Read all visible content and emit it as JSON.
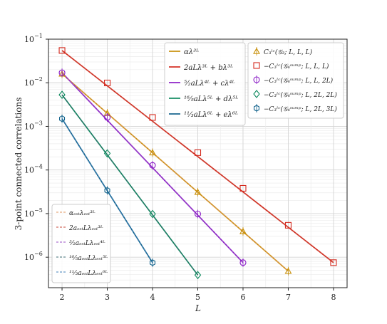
{
  "chart_data": {
    "type": "line",
    "xlabel": "L",
    "ylabel": "3-point connected correlations",
    "xlim": [
      1.7,
      8.3
    ],
    "ylim": [
      2e-07,
      0.1
    ],
    "yscale": "log",
    "grid": true,
    "xticks": [
      "2",
      "3",
      "4",
      "5",
      "6",
      "7",
      "8"
    ],
    "yticks": [
      {
        "v": 0.1,
        "m": "10",
        "e": "−1"
      },
      {
        "v": 0.01,
        "m": "10",
        "e": "−2"
      },
      {
        "v": 0.001,
        "m": "10",
        "e": "−3"
      },
      {
        "v": 0.0001,
        "m": "10",
        "e": "−4"
      },
      {
        "v": 1e-05,
        "m": "10",
        "e": "−5"
      },
      {
        "v": 1e-06,
        "m": "10",
        "e": "−6"
      }
    ],
    "fits": [
      {
        "name": "αλ³ᴸ",
        "color": "#c8900a",
        "x": [
          2,
          7
        ],
        "y": [
          0.016,
          4.8e-07
        ]
      },
      {
        "name": "2aLλ³ᴸ + bλ³ᴸ",
        "color": "#d42a1e",
        "x": [
          2,
          8
        ],
        "y": [
          0.055,
          7.5e-07
        ]
      },
      {
        "name": "⁵⁄₂aLλ⁴ᴸ + cλ⁴ᴸ",
        "color": "#8a1cc6",
        "x": [
          2,
          6
        ],
        "y": [
          0.017,
          7.5e-07
        ]
      },
      {
        "name": "¹⁶⁄₅aLλ⁵ᴸ + dλ⁵ᴸ",
        "color": "#0f8a5f",
        "x": [
          2,
          5
        ],
        "y": [
          0.0053,
          3.9e-07
        ]
      },
      {
        "name": "¹¹⁄₃aLλ⁶ᴸ + eλ⁶ᴸ",
        "color": "#12638c",
        "x": [
          2,
          4
        ],
        "y": [
          0.0015,
          7.5e-07
        ]
      }
    ],
    "series": [
      {
        "name": "C₃ˡᶜ(𝒢₃; L, L, L)",
        "marker": "triangle",
        "color": "#c8900a",
        "x": [
          2,
          3,
          4,
          5,
          6,
          7
        ],
        "y": [
          0.016,
          0.002,
          0.00025,
          3.1e-05,
          3.9e-06,
          4.8e-07
        ]
      },
      {
        "name": "−C₃ˡᶜ(𝒢₄ˢᵘᵐᵖ; L, L, L)",
        "marker": "square",
        "color": "#d42a1e",
        "x": [
          2,
          3,
          4,
          5,
          6,
          7,
          8
        ],
        "y": [
          0.055,
          0.0099,
          0.0016,
          0.00025,
          3.8e-05,
          5.4e-06,
          7.5e-07
        ]
      },
      {
        "name": "−C₃ˡᶜ(𝒢₄ˢᵘᵐᵖ; L, L, 2L)",
        "marker": "circle",
        "color": "#8a1cc6",
        "x": [
          2,
          3,
          4,
          5,
          6
        ],
        "y": [
          0.017,
          0.0016,
          0.000128,
          9.8e-06,
          7.5e-07
        ]
      },
      {
        "name": "−C₃ˡᶜ(𝒢₄ˢᵘᵐᵖ; L, 2L, 2L)",
        "marker": "diamond",
        "color": "#0f8a5f",
        "x": [
          2,
          3,
          4,
          5
        ],
        "y": [
          0.0053,
          0.00024,
          9.8e-06,
          3.9e-07
        ]
      },
      {
        "name": "−C₃ˡᶜ(𝒢₄ˢᵘᵐᵖ; L, 2L, 3L)",
        "marker": "hexagon",
        "color": "#12638c",
        "x": [
          2,
          3,
          4
        ],
        "y": [
          0.0015,
          3.4e-05,
          7.5e-07
        ]
      }
    ],
    "estimates": [
      {
        "name": "αₑₛₜλₑₛₜ³ᴸ",
        "color": "#e0945e"
      },
      {
        "name": "2aₑₛₜLλₑₛₜ³ᴸ",
        "color": "#c84a3a"
      },
      {
        "name": "⁵⁄₂aₑₛₜLλₑₛₜ⁴ᴸ",
        "color": "#9a4ec6"
      },
      {
        "name": "¹⁶⁄₅aₑₛₜLλₑₛₜ⁵ᴸ",
        "color": "#3a6a70"
      },
      {
        "name": "¹¹⁄₃aₑₛₜLλₑₛₜ⁶ᴸ",
        "color": "#3f7fb8"
      }
    ]
  }
}
